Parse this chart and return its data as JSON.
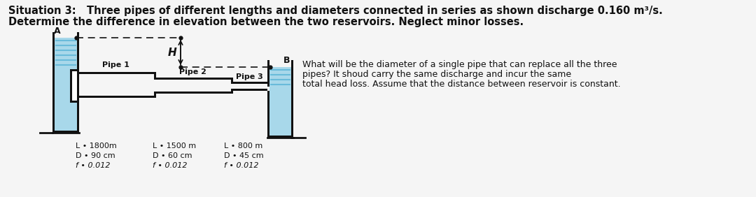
{
  "title_line1": "Situation 3:   Three pipes of different lengths and diameters connected in series as shown discharge 0.160 m³/s.",
  "title_line2": "Determine the difference in elevation between the two reservoirs. Neglect minor losses.",
  "side_text_line1": "What will be the diameter of a single pipe that can replace all the three",
  "side_text_line2": "pipes? It shoud carry the same discharge and incur the same",
  "side_text_line3": "total head loss. Assume that the distance between reservoir is constant.",
  "pipe1_label": "Pipe 1",
  "pipe2_label": "Pipe 2",
  "pipe3_label": "Pipe 3",
  "pipe1_L": "L • 1800m",
  "pipe1_D": "D • 90 cm",
  "pipe1_f": "f • 0.012",
  "pipe2_L": "L • 1500 m",
  "pipe2_D": "D • 60 cm",
  "pipe2_f": "f • 0.012",
  "pipe3_L": "L • 800 m",
  "pipe3_D": "D • 45 cm",
  "pipe3_f": "f • 0.012",
  "H_label": "H",
  "A_label": "A",
  "B_label": "B",
  "water_color": "#a8d8ea",
  "pipe_color": "#111111",
  "bg_color": "#f5f5f5",
  "text_color": "#111111",
  "font_size_title": 10.5,
  "font_size_label": 8.0,
  "font_size_info": 8.0
}
